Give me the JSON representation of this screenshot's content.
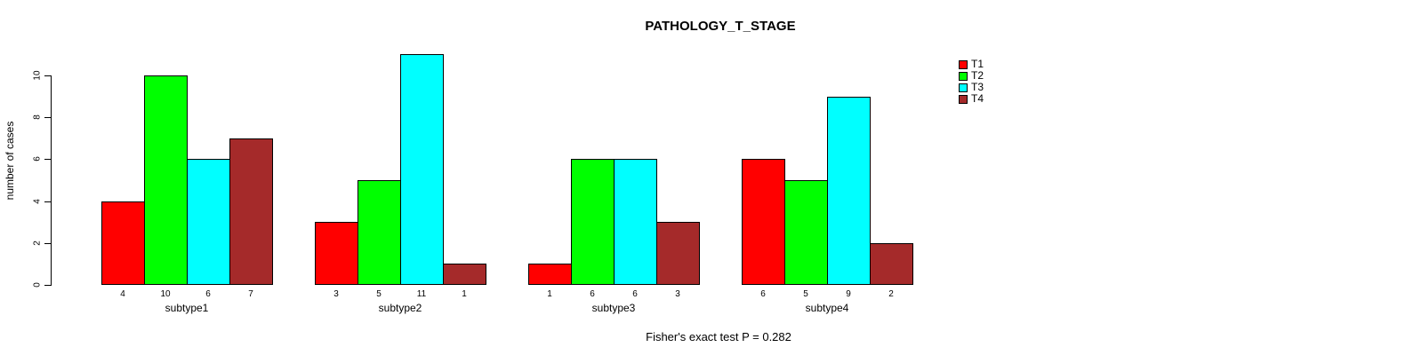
{
  "header": {
    "title": "PATHOLOGY_T_STAGE"
  },
  "footer": {
    "annotation": "Fisher's exact test P = 0.282"
  },
  "chart_data": {
    "type": "bar",
    "title": "PATHOLOGY_T_STAGE",
    "xlabel": "",
    "ylabel": "number of cases",
    "categories": [
      "subtype1",
      "subtype2",
      "subtype3",
      "subtype4"
    ],
    "series": [
      {
        "name": "T1",
        "color": "#ff0000",
        "values": [
          4,
          3,
          1,
          6
        ]
      },
      {
        "name": "T2",
        "color": "#00ff00",
        "values": [
          10,
          5,
          6,
          5
        ]
      },
      {
        "name": "T3",
        "color": "#00ffff",
        "values": [
          6,
          11,
          6,
          9
        ]
      },
      {
        "name": "T4",
        "color": "#a52a2a",
        "values": [
          7,
          1,
          3,
          2
        ]
      }
    ],
    "bar_value_labels_shown": true,
    "yticks": [
      0,
      2,
      4,
      6,
      8,
      10
    ],
    "ylim": [
      0,
      11
    ],
    "grid": false,
    "legend_position": "top-right",
    "legend_entries": [
      "T1",
      "T2",
      "T3",
      "T4"
    ],
    "annotation": "Fisher's exact test P = 0.282",
    "colors": {
      "background": "#ffffff",
      "axis": "#000000",
      "text": "#000000"
    }
  }
}
